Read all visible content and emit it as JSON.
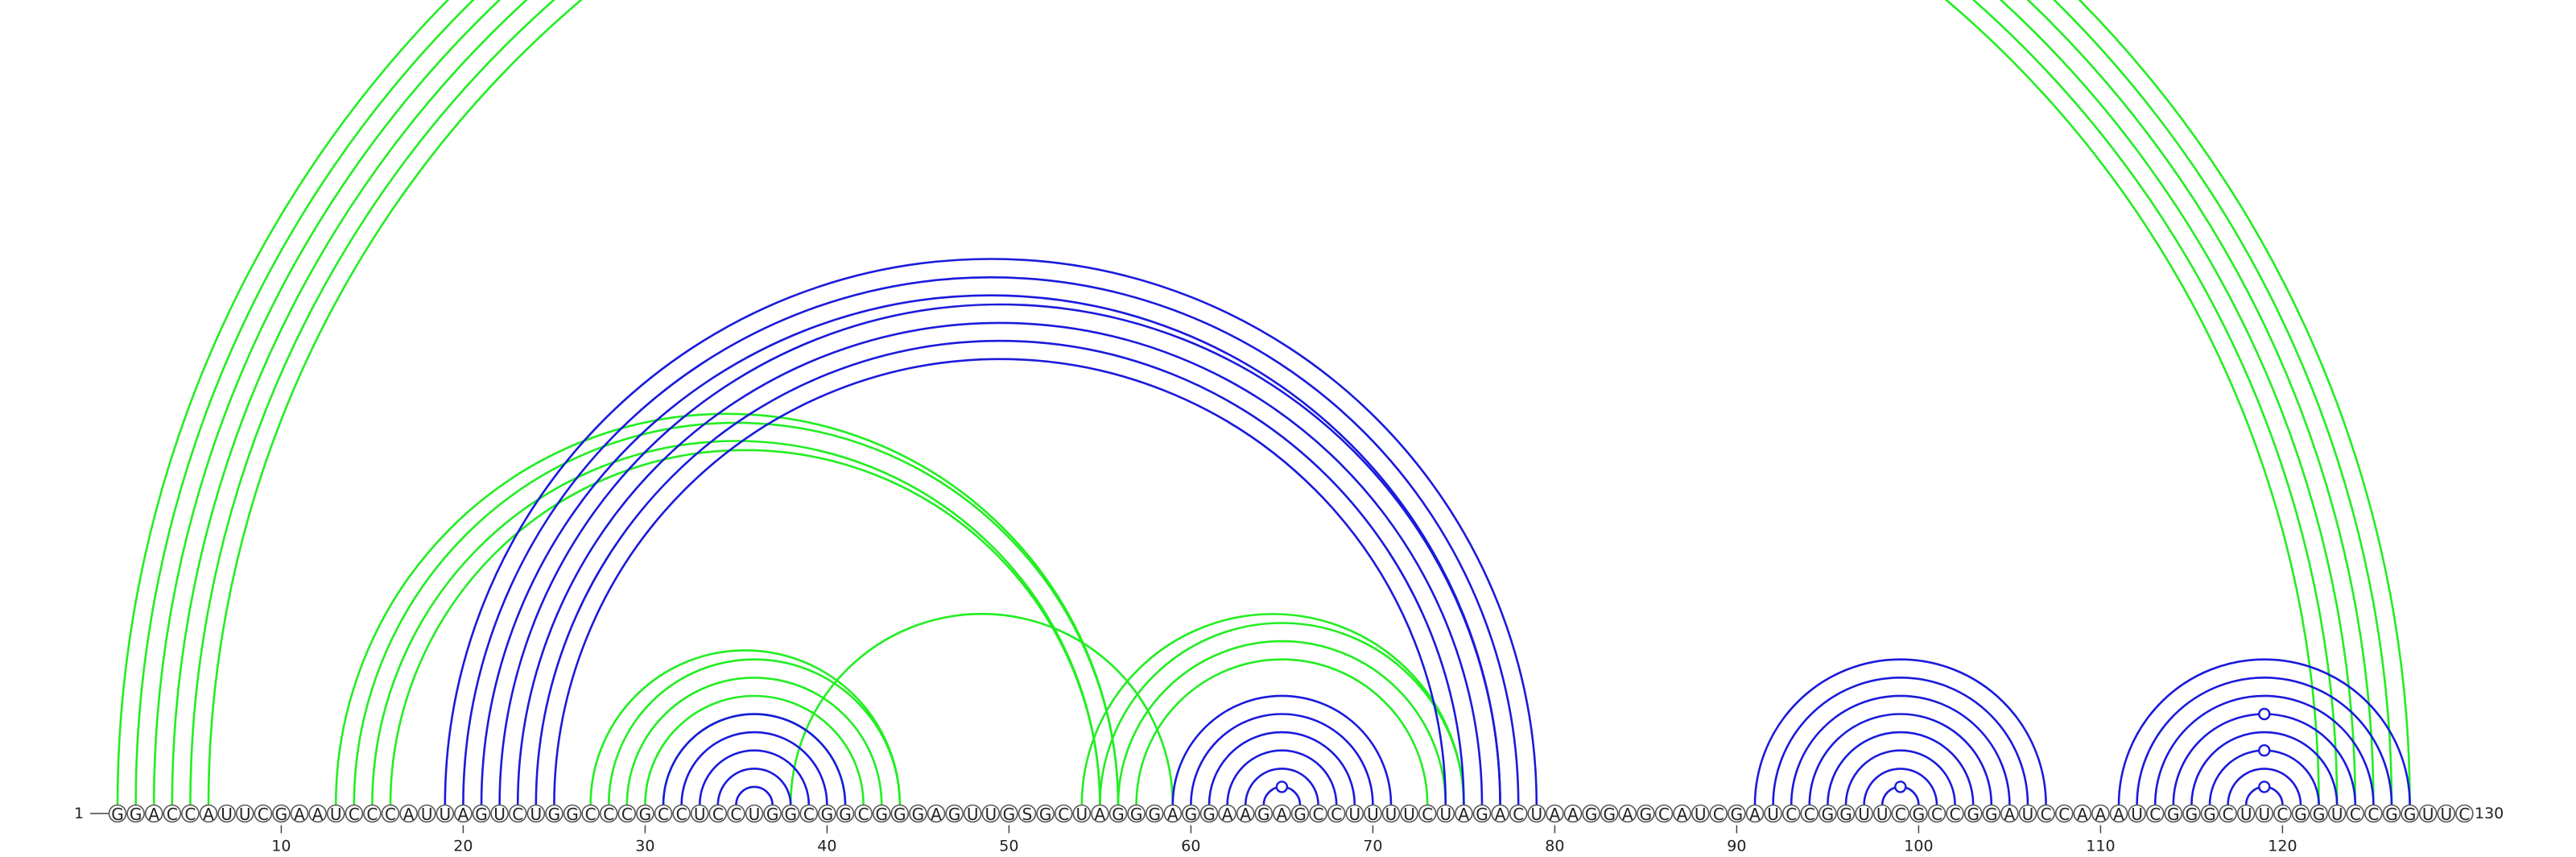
{
  "sequence": "GGACCAUUCGAAUCCCAUUAGUCUGGCCCGCCUCCUGGCGGCGGGAGUUGSGCUAGGGAGGAAGAGCCUUUUCUAGACUAAGGAGCAUCGAUCCGGUUCGCCGGAUCCAAAUCGGGCUUCGGUCCGGUUC",
  "start_label": "1",
  "end_label": "130",
  "ticks": [
    10,
    20,
    30,
    40,
    50,
    60,
    70,
    80,
    90,
    100,
    110,
    120
  ],
  "colors": {
    "green": "#22ee22",
    "blue": "#1a1adc"
  },
  "pairs": {
    "green": [
      [
        1,
        127
      ],
      [
        2,
        126
      ],
      [
        3,
        125
      ],
      [
        4,
        124
      ],
      [
        5,
        123
      ],
      [
        6,
        122
      ],
      [
        13,
        56
      ],
      [
        14,
        56
      ],
      [
        15,
        55
      ],
      [
        16,
        55
      ],
      [
        27,
        44
      ],
      [
        28,
        44
      ],
      [
        29,
        43
      ],
      [
        30,
        42
      ],
      [
        31,
        41
      ],
      [
        54,
        75
      ],
      [
        55,
        75
      ],
      [
        56,
        74
      ],
      [
        57,
        73
      ],
      [
        59,
        38
      ]
    ],
    "blue": [
      [
        19,
        79
      ],
      [
        20,
        78
      ],
      [
        21,
        77
      ],
      [
        22,
        77
      ],
      [
        23,
        76
      ],
      [
        24,
        75
      ],
      [
        25,
        74
      ],
      [
        31,
        41
      ],
      [
        32,
        40
      ],
      [
        33,
        39
      ],
      [
        34,
        38
      ],
      [
        35,
        37
      ],
      [
        59,
        71
      ],
      [
        60,
        70
      ],
      [
        61,
        69
      ],
      [
        62,
        68
      ],
      [
        63,
        67
      ],
      [
        64,
        66
      ],
      [
        91,
        107
      ],
      [
        92,
        106
      ],
      [
        93,
        105
      ],
      [
        94,
        104
      ],
      [
        95,
        103
      ],
      [
        96,
        102
      ],
      [
        97,
        101
      ],
      [
        98,
        100
      ],
      [
        111,
        127
      ],
      [
        112,
        126
      ],
      [
        113,
        125
      ],
      [
        114,
        124
      ],
      [
        115,
        123
      ],
      [
        116,
        122
      ],
      [
        117,
        121
      ],
      [
        118,
        120
      ]
    ]
  },
  "markers": {
    "green": [
      [
        1,
        127
      ]
    ],
    "blue": [
      [
        64,
        66
      ],
      [
        98,
        100
      ],
      [
        118,
        120
      ],
      [
        116,
        122
      ],
      [
        114,
        124
      ]
    ]
  }
}
